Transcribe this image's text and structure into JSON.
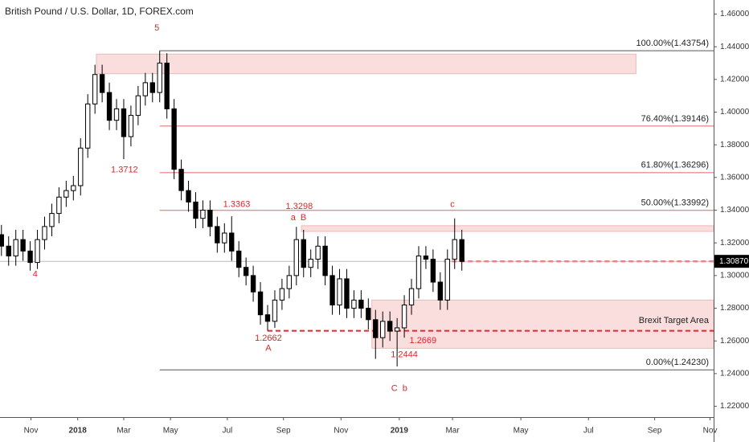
{
  "chart_data": {
    "type": "candlestick",
    "title": "British Pound / U.S. Dollar, 1D, FOREX.com",
    "categories": [
      null,
      null,
      null,
      null,
      null,
      null,
      null,
      null,
      null,
      null,
      null,
      null,
      null,
      null,
      null,
      null,
      null,
      null,
      null,
      null,
      null,
      null,
      null,
      null,
      null,
      null,
      null,
      null,
      null,
      null,
      null,
      null,
      null,
      null,
      null,
      null,
      null,
      null,
      null,
      null,
      null,
      null,
      null,
      null,
      null,
      null,
      null,
      null,
      null,
      null,
      null,
      null,
      null,
      null,
      null,
      null,
      null,
      null,
      null,
      null,
      null,
      null,
      null,
      null,
      null
    ],
    "open": [
      1.325,
      1.318,
      1.312,
      1.322,
      1.315,
      1.308,
      1.322,
      1.33,
      1.338,
      1.348,
      1.352,
      1.355,
      1.378,
      1.405,
      1.423,
      1.412,
      1.395,
      1.402,
      1.385,
      1.398,
      1.41,
      1.418,
      1.412,
      1.43,
      1.402,
      1.365,
      1.352,
      1.345,
      1.335,
      1.34,
      1.33,
      1.32,
      1.326,
      1.315,
      1.305,
      1.3,
      1.29,
      1.276,
      1.272,
      1.285,
      1.292,
      1.3,
      1.322,
      1.305,
      1.31,
      1.318,
      1.3,
      1.282,
      1.298,
      1.28,
      1.285,
      1.28,
      1.273,
      1.262,
      1.272,
      1.266,
      1.268,
      1.282,
      1.292,
      1.312,
      1.31,
      1.296,
      1.285,
      1.31,
      1.322
    ],
    "high": [
      1.331,
      1.324,
      1.328,
      1.328,
      1.321,
      1.328,
      1.336,
      1.344,
      1.354,
      1.358,
      1.361,
      1.384,
      1.411,
      1.429,
      1.429,
      1.418,
      1.408,
      1.408,
      1.404,
      1.416,
      1.424,
      1.424,
      1.4375,
      1.436,
      1.408,
      1.371,
      1.358,
      1.351,
      1.346,
      1.346,
      1.336,
      1.332,
      1.3363,
      1.321,
      1.311,
      1.306,
      1.296,
      1.282,
      1.291,
      1.298,
      1.306,
      1.3298,
      1.328,
      1.316,
      1.324,
      1.324,
      1.306,
      1.304,
      1.304,
      1.291,
      1.291,
      1.286,
      1.279,
      1.278,
      1.278,
      1.274,
      1.288,
      1.298,
      1.318,
      1.318,
      1.316,
      1.302,
      1.316,
      1.335,
      1.328
    ],
    "low": [
      1.312,
      1.306,
      1.306,
      1.309,
      1.303,
      1.304,
      1.316,
      1.324,
      1.332,
      1.342,
      1.346,
      1.349,
      1.372,
      1.399,
      1.406,
      1.389,
      1.389,
      1.3712,
      1.379,
      1.392,
      1.404,
      1.406,
      1.406,
      1.396,
      1.359,
      1.346,
      1.339,
      1.329,
      1.329,
      1.324,
      1.314,
      1.314,
      1.309,
      1.299,
      1.294,
      1.284,
      1.27,
      1.2662,
      1.268,
      1.279,
      1.286,
      1.294,
      1.299,
      1.299,
      1.304,
      1.294,
      1.276,
      1.276,
      1.274,
      1.274,
      1.274,
      1.267,
      1.249,
      1.256,
      1.26,
      1.2444,
      1.262,
      1.276,
      1.286,
      1.304,
      1.29,
      1.279,
      1.279,
      1.304,
      1.303
    ],
    "close": [
      1.318,
      1.312,
      1.322,
      1.315,
      1.308,
      1.322,
      1.33,
      1.338,
      1.348,
      1.352,
      1.355,
      1.378,
      1.405,
      1.423,
      1.412,
      1.395,
      1.402,
      1.385,
      1.398,
      1.41,
      1.418,
      1.412,
      1.43,
      1.402,
      1.365,
      1.352,
      1.345,
      1.335,
      1.34,
      1.33,
      1.32,
      1.326,
      1.315,
      1.305,
      1.3,
      1.29,
      1.276,
      1.272,
      1.285,
      1.292,
      1.3,
      1.322,
      1.305,
      1.31,
      1.318,
      1.3,
      1.282,
      1.298,
      1.28,
      1.285,
      1.28,
      1.273,
      1.262,
      1.272,
      1.266,
      1.268,
      1.282,
      1.292,
      1.312,
      1.31,
      1.296,
      1.285,
      1.31,
      1.322,
      1.3087
    ],
    "up_color": "#ffffff",
    "down_color": "#000000",
    "wick_color": "#000000",
    "xlim": [
      -0.2,
      99
    ],
    "xticks": [
      {
        "value": 4.1,
        "label": "Nov"
      },
      {
        "value": 10.6,
        "label": "2018"
      },
      {
        "value": 17,
        "label": "Mar"
      },
      {
        "value": 23.5,
        "label": "May"
      },
      {
        "value": 31.4,
        "label": "Jul"
      },
      {
        "value": 39.2,
        "label": "Sep"
      },
      {
        "value": 47.2,
        "label": "Nov"
      },
      {
        "value": 55.3,
        "label": "2019"
      },
      {
        "value": 62.7,
        "label": "Mar"
      },
      {
        "value": 72.2,
        "label": "May"
      },
      {
        "value": 81.6,
        "label": "Jul"
      },
      {
        "value": 90.8,
        "label": "Sep"
      },
      {
        "value": 98.5,
        "label": "Nov"
      }
    ],
    "ylim": [
      1.2134,
      1.4686
    ],
    "yticks": [
      {
        "value": 1.22,
        "label": "1.22000"
      },
      {
        "value": 1.24,
        "label": "1.24000"
      },
      {
        "value": 1.26,
        "label": "1.26000"
      },
      {
        "value": 1.28,
        "label": "1.28000"
      },
      {
        "value": 1.3,
        "label": "1.30000"
      },
      {
        "value": 1.32,
        "label": "1.32000"
      },
      {
        "value": 1.34,
        "label": "1.34000"
      },
      {
        "value": 1.36,
        "label": "1.36000"
      },
      {
        "value": 1.38,
        "label": "1.38000"
      },
      {
        "value": 1.4,
        "label": "1.40000"
      },
      {
        "value": 1.42,
        "label": "1.42000"
      },
      {
        "value": 1.44,
        "label": "1.44000"
      },
      {
        "value": 1.46,
        "label": "1.46000"
      }
    ],
    "zones": [
      {
        "from": 1.4235,
        "to": 1.4355,
        "x0": 13.2,
        "x1": 88.2,
        "color": "#f4b6b6"
      },
      {
        "from": 1.327,
        "to": 1.3305,
        "x0": 41.7,
        "x1": 99,
        "color": "#f4b6b6"
      },
      {
        "from": 1.2555,
        "to": 1.285,
        "x0": 51.5,
        "x1": 99,
        "color": "#f4b6b6",
        "label": "Brexit Target Area",
        "label_y": 1.2723
      }
    ],
    "levels": [
      {
        "value": 1.43754,
        "label": "100.00%(1.43754)",
        "x0": 22,
        "color": "#555555"
      },
      {
        "value": 1.39146,
        "label": "76.40%(1.39146)",
        "x0": 22,
        "color": "#e06666"
      },
      {
        "value": 1.36296,
        "label": "61.80%(1.36296)",
        "x0": 22,
        "color": "#e06666"
      },
      {
        "value": 1.33992,
        "label": "50.00%(1.33992)",
        "x0": 22,
        "color": "#e06666"
      },
      {
        "value": 1.2423,
        "label": "0.00%(1.24230)",
        "x0": 22,
        "color": "#555555"
      },
      {
        "value": 1.2662,
        "x0": 37,
        "color": "#e8242b",
        "dashed": true
      },
      {
        "value": 1.3087,
        "x0": 61.5,
        "color": "#e8242b",
        "dashed": true
      }
    ],
    "last": {
      "value": 1.3087,
      "label": "1.30870"
    },
    "annotations": [
      {
        "text": "5",
        "x": 21.6,
        "y": 1.4514
      },
      {
        "text": "4",
        "x": 4.7,
        "y": 1.3007
      },
      {
        "text": "1.3712",
        "x": 17.1,
        "y": 1.3646
      },
      {
        "text": "1.3363",
        "x": 32.7,
        "y": 1.3433
      },
      {
        "text": "1.3298",
        "x": 41.4,
        "y": 1.3423
      },
      {
        "text": "a  B",
        "x": 41.3,
        "y": 1.3352
      },
      {
        "text": "1.2662",
        "x": 37.1,
        "y": 1.2616
      },
      {
        "text": "A",
        "x": 37.1,
        "y": 1.2555
      },
      {
        "text": "1.2669",
        "x": 58.6,
        "y": 1.2601
      },
      {
        "text": "1.2444",
        "x": 56,
        "y": 1.2515
      },
      {
        "text": "C  b",
        "x": 55.3,
        "y": 1.2307
      },
      {
        "text": "c",
        "x": 62.7,
        "y": 1.3433
      }
    ]
  }
}
